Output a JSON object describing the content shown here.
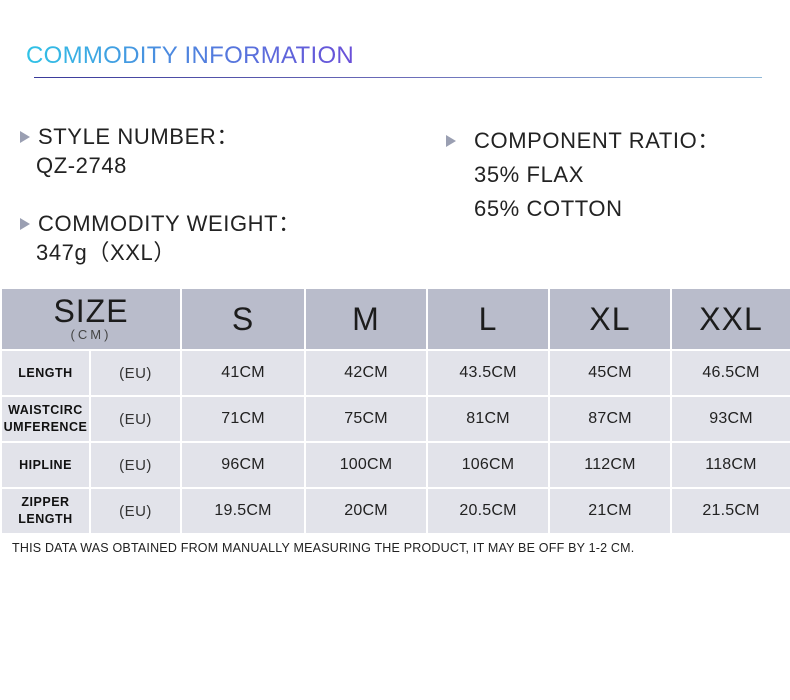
{
  "header": {
    "title": "COMMODITY INFORMATION"
  },
  "info": {
    "style_number": {
      "label": "STYLE NUMBER：",
      "value": "QZ-2748"
    },
    "commodity_weight": {
      "label": "COMMODITY WEIGHT：",
      "value": "347g（XXL）"
    },
    "component_ratio": {
      "label": "COMPONENT RATIO：",
      "values": [
        "35% FLAX",
        "65% COTTON"
      ]
    }
  },
  "size_table": {
    "header_label": "SIZE",
    "header_unit": "(CM)",
    "columns": [
      "S",
      "M",
      "L",
      "XL",
      "XXL"
    ],
    "rows": [
      {
        "label_lines": [
          "LENGTH"
        ],
        "unit": "(EU)",
        "values": [
          "41CM",
          "42CM",
          "43.5CM",
          "45CM",
          "46.5CM"
        ]
      },
      {
        "label_lines": [
          "WAISTCIRC",
          "UMFERENCE"
        ],
        "unit": "(EU)",
        "values": [
          "71CM",
          "75CM",
          "81CM",
          "87CM",
          "93CM"
        ]
      },
      {
        "label_lines": [
          "HIPLINE"
        ],
        "unit": "(EU)",
        "values": [
          "96CM",
          "100CM",
          "106CM",
          "112CM",
          "118CM"
        ]
      },
      {
        "label_lines": [
          "ZIPPER",
          "LENGTH"
        ],
        "unit": "(EU)",
        "values": [
          "19.5CM",
          "20CM",
          "20.5CM",
          "21CM",
          "21.5CM"
        ]
      }
    ]
  },
  "footnote": "THIS DATA WAS OBTAINED FROM MANUALLY MEASURING THE PRODUCT, IT MAY BE OFF BY 1-2 CM.",
  "colors": {
    "title_gradient_start": "#2fc3e6",
    "title_gradient_end": "#6a4fd8",
    "table_header_bg": "#b9bccb",
    "table_body_bg": "#e2e3ea",
    "bullet_triangle": "#9a9fb2"
  },
  "icons": {
    "bullet": "right-triangle-icon"
  }
}
